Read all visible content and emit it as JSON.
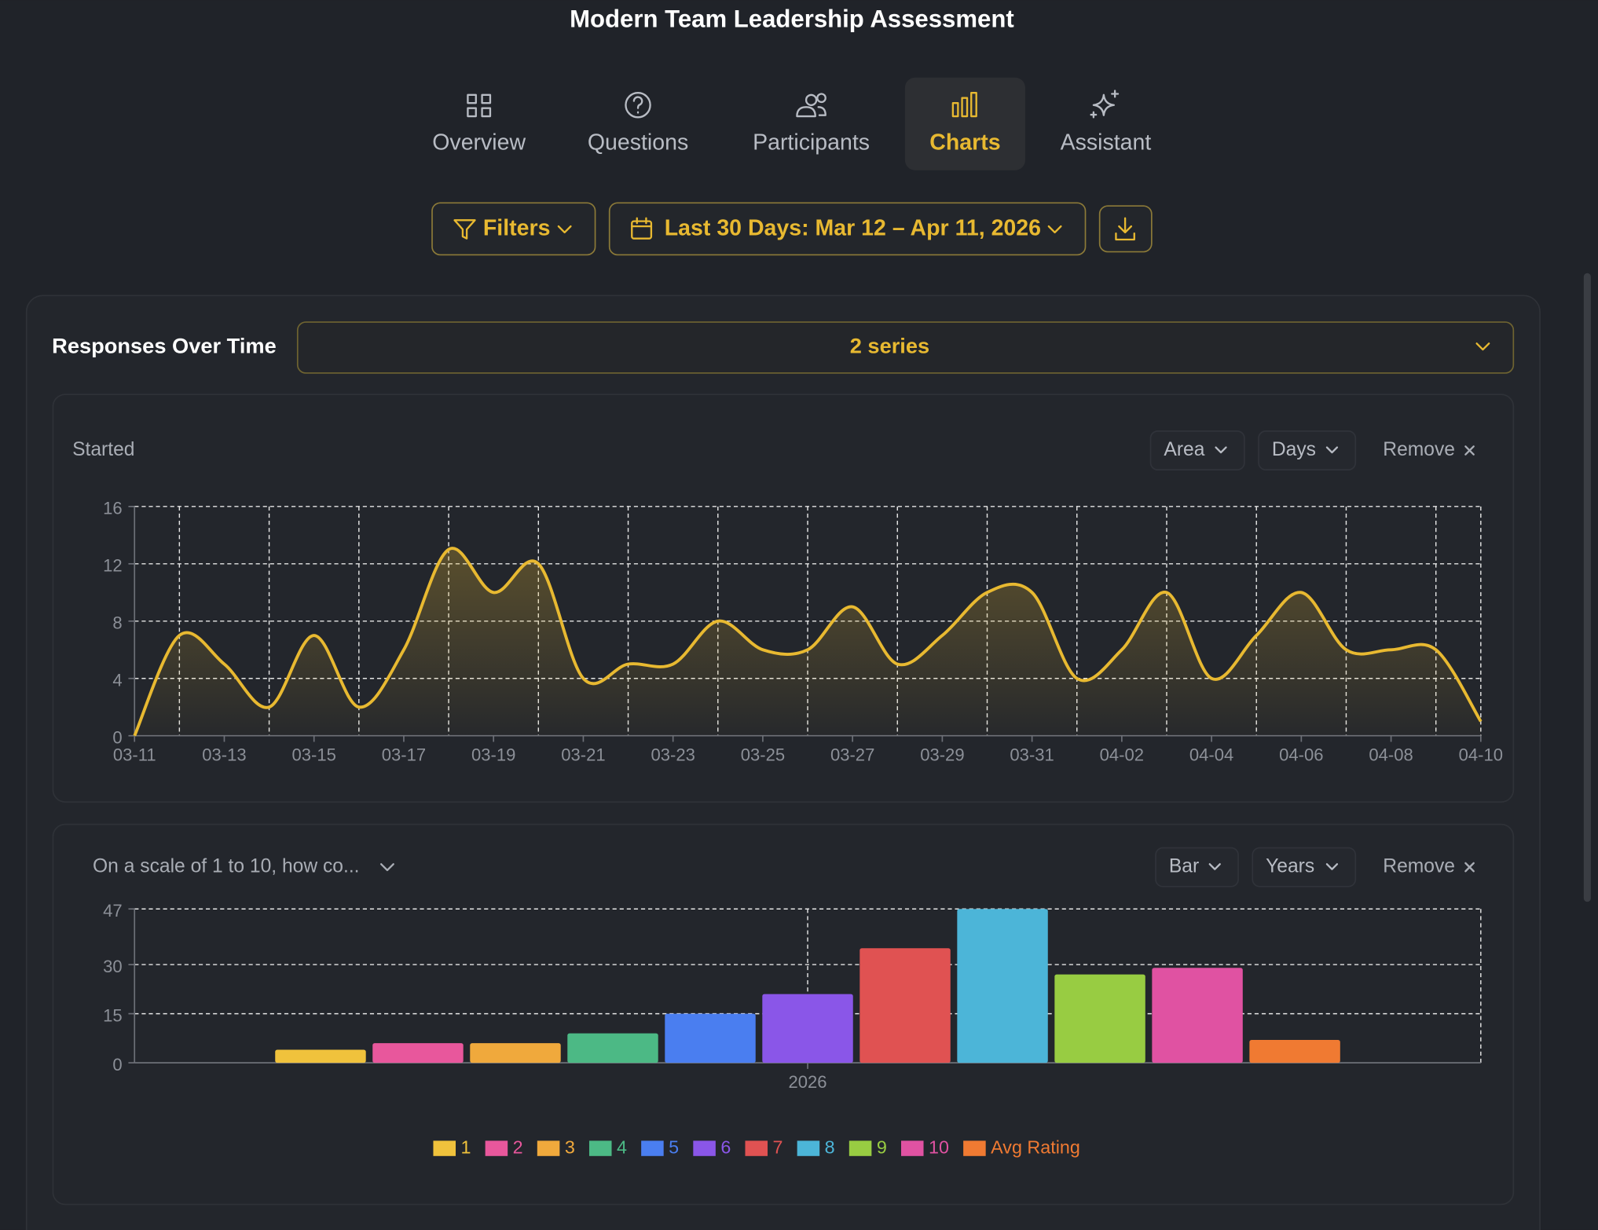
{
  "title": "Modern Team Leadership Assessment",
  "tabs": [
    "Overview",
    "Questions",
    "Participants",
    "Charts",
    "Assistant"
  ],
  "active_tab": 3,
  "toolbar": {
    "filters": "Filters",
    "date_range": "Last 30 Days: Mar 12 – Apr 11, 2026"
  },
  "panel": {
    "title": "Responses Over Time",
    "series_select": "2 series"
  },
  "chart_controls": [
    {
      "label": "Started",
      "type_select": "Area",
      "interval_select": "Days",
      "remove": "Remove"
    },
    {
      "label": "On a scale of 1 to 10, how co...",
      "type_select": "Bar",
      "interval_select": "Years",
      "remove": "Remove"
    }
  ],
  "chart_data": [
    {
      "type": "area",
      "categories": [
        "03-11",
        null,
        "03-13",
        null,
        "03-15",
        null,
        "03-17",
        null,
        "03-19",
        null,
        "03-21",
        null,
        "03-23",
        null,
        "03-25",
        null,
        "03-27",
        null,
        "03-29",
        null,
        "03-31",
        null,
        "04-02",
        null,
        "04-04",
        null,
        "04-06",
        null,
        "04-08",
        null,
        "04-10"
      ],
      "values": [
        0,
        7,
        5,
        2,
        7,
        2,
        6,
        13,
        10,
        12,
        4,
        5,
        5,
        8,
        6,
        6,
        9,
        5,
        7,
        10,
        10,
        4,
        6,
        10,
        4,
        7,
        10,
        6,
        6,
        6,
        1
      ],
      "color": "#e8b931",
      "ylim": [
        0,
        16
      ],
      "yticks": [
        0,
        4,
        8,
        12,
        16
      ],
      "grid": true
    },
    {
      "type": "bar",
      "categories": [
        "2026"
      ],
      "series": [
        {
          "name": "1",
          "color": "#f0c23c",
          "values": [
            4
          ]
        },
        {
          "name": "2",
          "color": "#e8579c",
          "values": [
            6
          ]
        },
        {
          "name": "3",
          "color": "#f0a93c",
          "values": [
            6
          ]
        },
        {
          "name": "4",
          "color": "#4cb985",
          "values": [
            9
          ]
        },
        {
          "name": "5",
          "color": "#4a7ef0",
          "values": [
            15
          ]
        },
        {
          "name": "6",
          "color": "#8a56e8",
          "values": [
            21
          ]
        },
        {
          "name": "7",
          "color": "#e05252",
          "values": [
            35
          ]
        },
        {
          "name": "8",
          "color": "#4cb5d8",
          "values": [
            47
          ]
        },
        {
          "name": "9",
          "color": "#98cc42",
          "values": [
            27
          ]
        },
        {
          "name": "10",
          "color": "#e052a2",
          "values": [
            29
          ]
        },
        {
          "name": "Avg Rating",
          "color": "#f07a32",
          "values": [
            7
          ]
        }
      ],
      "ylim": [
        0,
        47
      ],
      "yticks": [
        0,
        15,
        30,
        47
      ],
      "grid": true,
      "legend": "bottom"
    }
  ]
}
